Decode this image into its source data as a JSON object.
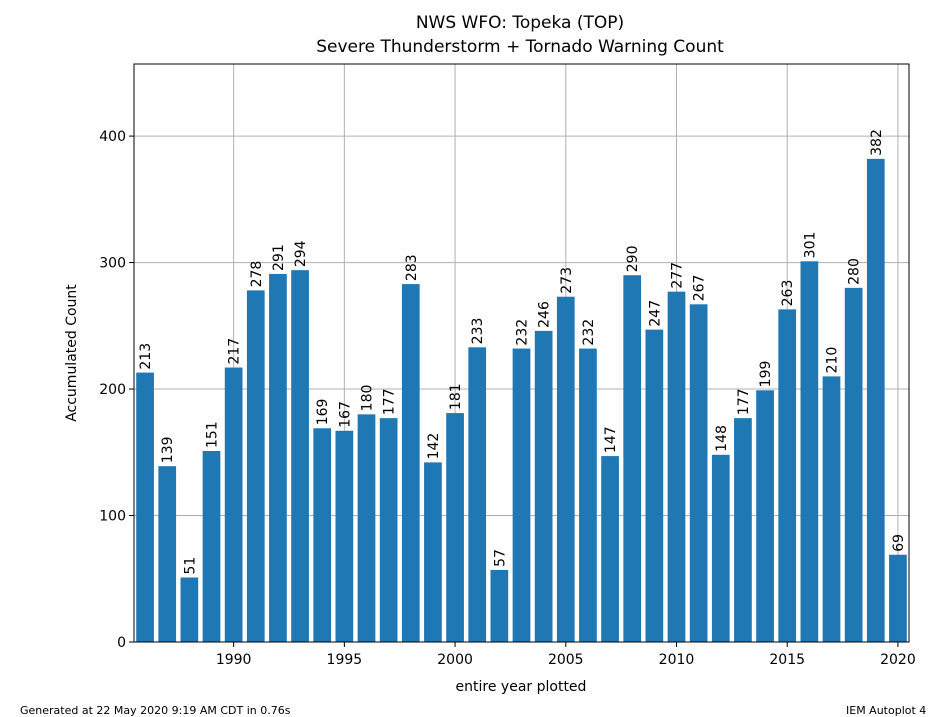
{
  "chart_data": {
    "type": "bar",
    "title": "NWS WFO: Topeka (TOP)",
    "subtitle": "Severe Thunderstorm + Tornado Warning Count",
    "xlabel": "entire year plotted",
    "ylabel": "Accumulated Count",
    "x": [
      1986,
      1987,
      1988,
      1989,
      1990,
      1991,
      1992,
      1993,
      1994,
      1995,
      1996,
      1997,
      1998,
      1999,
      2000,
      2001,
      2002,
      2003,
      2004,
      2005,
      2006,
      2007,
      2008,
      2009,
      2010,
      2011,
      2012,
      2013,
      2014,
      2015,
      2016,
      2017,
      2018,
      2019,
      2020
    ],
    "values": [
      213,
      139,
      51,
      151,
      217,
      278,
      291,
      294,
      169,
      167,
      180,
      177,
      283,
      142,
      181,
      233,
      57,
      232,
      246,
      273,
      232,
      147,
      290,
      247,
      277,
      267,
      148,
      177,
      199,
      263,
      301,
      210,
      280,
      382,
      69
    ],
    "xticks": [
      1990,
      1995,
      2000,
      2005,
      2010,
      2015,
      2020
    ],
    "yticks": [
      0,
      100,
      200,
      300,
      400
    ],
    "xlim": [
      1985.5,
      2020.5
    ],
    "ylim": [
      0,
      457
    ],
    "grid": true,
    "bar_color": "#1f77b4"
  },
  "footer": {
    "left": "Generated at 22 May 2020 9:19 AM CDT in 0.76s",
    "right": "IEM Autoplot 4"
  }
}
